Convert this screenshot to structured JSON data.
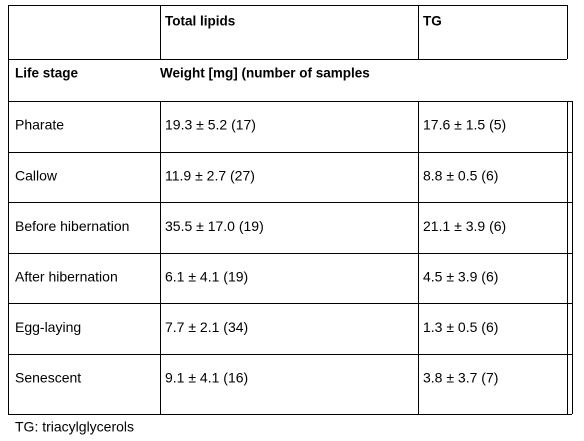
{
  "header": {
    "cells": [
      "Total lipids",
      "TG"
    ]
  },
  "subheader": {
    "label": "Life stage",
    "weight": "Weight [mg] (number of samples"
  },
  "table": {
    "rows": [
      [
        "Pharate",
        "19.3 ± 5.2 (17)",
        "17.6 ± 1.5 (5)"
      ],
      [
        "Callow",
        "11.9 ± 2.7 (27)",
        "8.8 ± 0.5 (6)"
      ],
      [
        "Before hibernation",
        "35.5 ± 17.0 (19)",
        "21.1 ± 3.9 (6)"
      ],
      [
        "After hibernation",
        "6.1 ± 4.1 (19)",
        "4.5 ± 3.9 (6)"
      ],
      [
        "Egg-laying",
        "7.7 ± 2.1 (34)",
        "1.3 ± 0.5 (6)"
      ],
      [
        "Senescent",
        "9.1 ± 4.1 (16)",
        "3.8 ± 3.7 (7)"
      ]
    ]
  },
  "footnote": "TG: triacylglycerols"
}
